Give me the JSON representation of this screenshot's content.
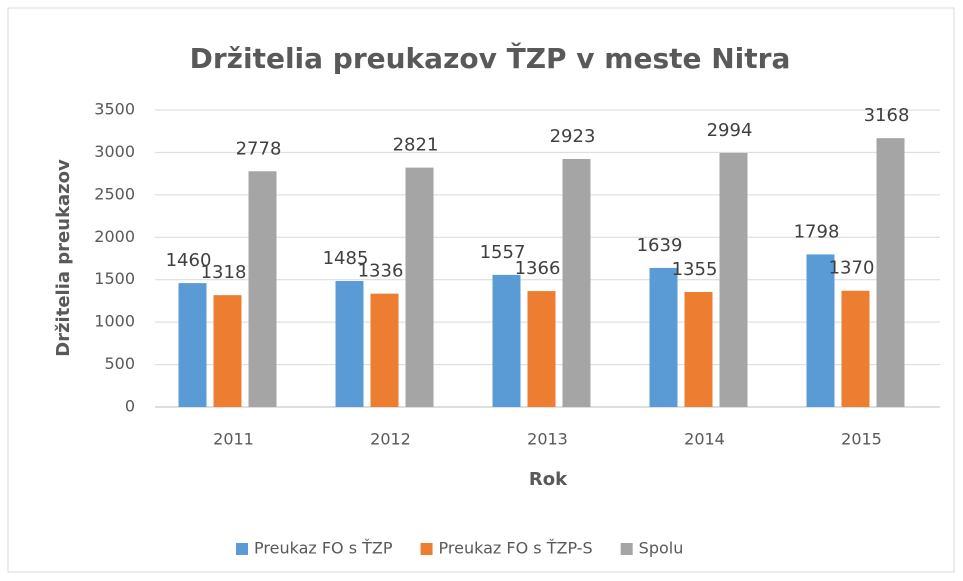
{
  "chart_data": {
    "type": "bar",
    "title": "Držitelia preukazov ŤZP v meste Nitra",
    "x_label": "Rok",
    "y_label": "Držitelia preukazov",
    "categories": [
      "2011",
      "2012",
      "2013",
      "2014",
      "2015"
    ],
    "series": [
      {
        "name": "Preukaz FO s ŤZP",
        "color": "#5b9bd5",
        "values": [
          1460,
          1485,
          1557,
          1639,
          1798
        ]
      },
      {
        "name": "Preukaz FO s ŤZP-S",
        "color": "#ed7d31",
        "values": [
          1318,
          1336,
          1366,
          1355,
          1370
        ]
      },
      {
        "name": "Spolu",
        "color": "#a5a5a5",
        "values": [
          2778,
          2821,
          2923,
          2994,
          3168
        ]
      }
    ],
    "ylim": [
      0,
      3500
    ],
    "yticks": [
      0,
      500,
      1000,
      1500,
      2000,
      2500,
      3000,
      3500
    ],
    "grid": true,
    "legend": "bottom"
  }
}
